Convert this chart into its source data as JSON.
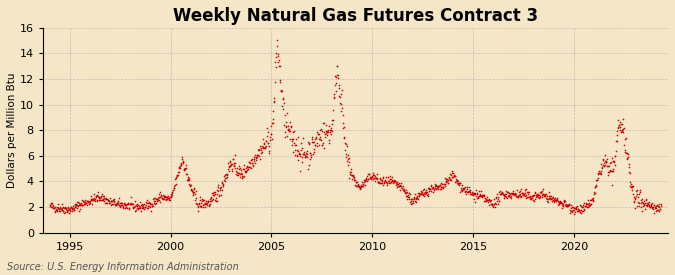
{
  "title": "Weekly Natural Gas Futures Contract 3",
  "ylabel": "Dollars per Million Btu",
  "source": "Source: U.S. Energy Information Administration",
  "bg_color": "#f5e6c8",
  "plot_bg_color": "#f5e6c8",
  "line_color": "#cc0000",
  "grid_color": "#aaaaaa",
  "ylim": [
    0,
    16
  ],
  "yticks": [
    0,
    2,
    4,
    6,
    8,
    10,
    12,
    14,
    16
  ],
  "title_fontsize": 12,
  "label_fontsize": 7.5,
  "tick_fontsize": 8,
  "source_fontsize": 7
}
